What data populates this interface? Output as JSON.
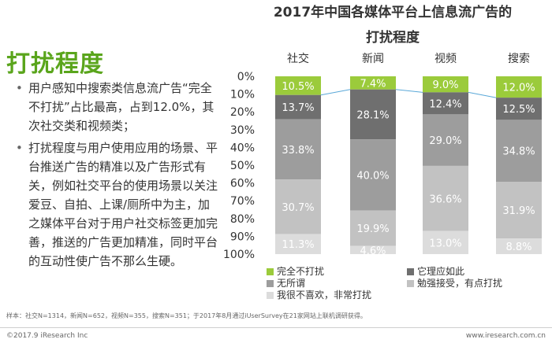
{
  "page": {
    "title": "打扰程度",
    "bullets": [
      "用户感知中搜索类信息流广告“完全不打扰”占比最高，占到12.0%，其次社交类和视频类；",
      "打扰程度与用户使用应用的场景、平台推送广告的精准以及广告形式有关，例如社交平台的使用场景以关注爱豆、自拍、上课/厕所中为主，加之媒体平台对于用户社交标签更加完善，推送的广告更加精准，同时平台的互动性使广告不那么生硬。"
    ],
    "footnote": "样本：社交N=1314，新闻N=652，视频N=355，搜索N=351；于2017年8月通过iUserSurvey在21家网站上联机调研获得。",
    "copyright": "©2017.9 iResearch Inc",
    "website": "www.iresearch.com.cn"
  },
  "chart_data": {
    "type": "bar",
    "stacked": true,
    "title_lines": [
      "2017年中国各媒体平台上信息流广告的",
      "打扰程度"
    ],
    "categories": [
      "社交",
      "新闻",
      "视频",
      "搜索"
    ],
    "y_ticks": [
      "0%",
      "10%",
      "20%",
      "30%",
      "40%",
      "50%",
      "60%",
      "70%",
      "80%",
      "90%",
      "100%"
    ],
    "ylim": [
      0,
      100
    ],
    "y_inverted": true,
    "series": [
      {
        "name": "完全不打扰",
        "color": "#9bcb3b",
        "values": [
          10.5,
          7.4,
          9.0,
          12.0
        ]
      },
      {
        "name": "它理应如此",
        "color": "#6f6f6f",
        "values": [
          13.7,
          28.1,
          12.4,
          12.5
        ]
      },
      {
        "name": "无所谓",
        "color": "#9d9d9d",
        "values": [
          33.8,
          40.0,
          29.0,
          34.8
        ]
      },
      {
        "name": "勉强接受，有点打扰",
        "color": "#c2c2c2",
        "values": [
          30.7,
          19.9,
          36.6,
          31.9
        ]
      },
      {
        "name": "我很不喜欢，非常打扰",
        "color": "#dcdcdc",
        "values": [
          11.3,
          4.6,
          13.0,
          8.8
        ]
      }
    ],
    "value_labels": [
      [
        "10.5%",
        "7.4%",
        "9.0%",
        "12.0%"
      ],
      [
        "13.7%",
        "28.1%",
        "12.4%",
        "12.5%"
      ],
      [
        "33.8%",
        "40.0%",
        "29.0%",
        "34.8%"
      ],
      [
        "30.7%",
        "19.9%",
        "36.6%",
        "31.9%"
      ],
      [
        "11.3%",
        "4.6%",
        "13.0%",
        "8.8%"
      ]
    ],
    "connector_color": "#5aa8d8",
    "legend_position": "bottom"
  }
}
